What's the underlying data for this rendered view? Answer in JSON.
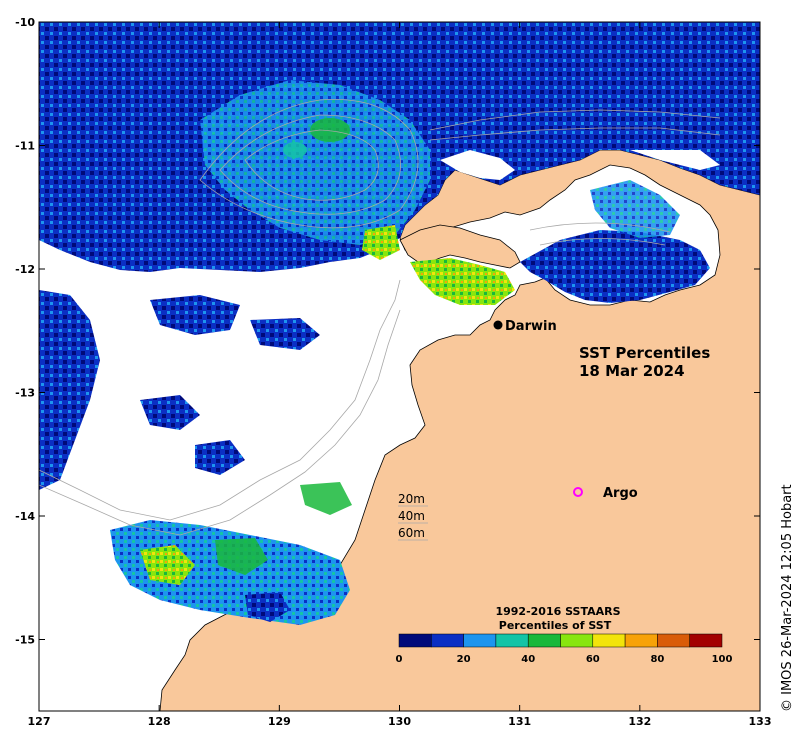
{
  "title": {
    "line1": "SST Percentiles",
    "line2": "18 Mar 2024"
  },
  "axes": {
    "lon_ticks": [
      "127",
      "128",
      "129",
      "130",
      "131",
      "132",
      "133"
    ],
    "lat_ticks": [
      "-10",
      "-11",
      "-12",
      "-13",
      "-14",
      "-15"
    ],
    "lon_range": [
      127,
      133
    ],
    "lat_range": [
      -15.6,
      -10
    ]
  },
  "places": {
    "darwin": {
      "label": "Darwin",
      "lon": 130.83,
      "lat": -12.45
    },
    "argo": {
      "label": "Argo",
      "lon": 131.5,
      "lat": -13.8
    }
  },
  "depth_labels": [
    "20m",
    "40m",
    "60m"
  ],
  "colorbar": {
    "title_line1": "1992-2016 SSTAARS",
    "title_line2": "Percentiles of SST",
    "ticks": [
      "0",
      "20",
      "40",
      "60",
      "80",
      "100"
    ],
    "colors": [
      "#000a7a",
      "#0b2fc4",
      "#1d95ef",
      "#14c4a6",
      "#19b83b",
      "#88e60f",
      "#f2e40b",
      "#f7a208",
      "#d95c08",
      "#a30000"
    ]
  },
  "credit": "© IMOS 26-Mar-2024 12:05 Hobart",
  "colors": {
    "land": "#f9c89b",
    "no_data": "#ffffff",
    "coastline": "#000000",
    "contour": "#a8a8a8"
  }
}
